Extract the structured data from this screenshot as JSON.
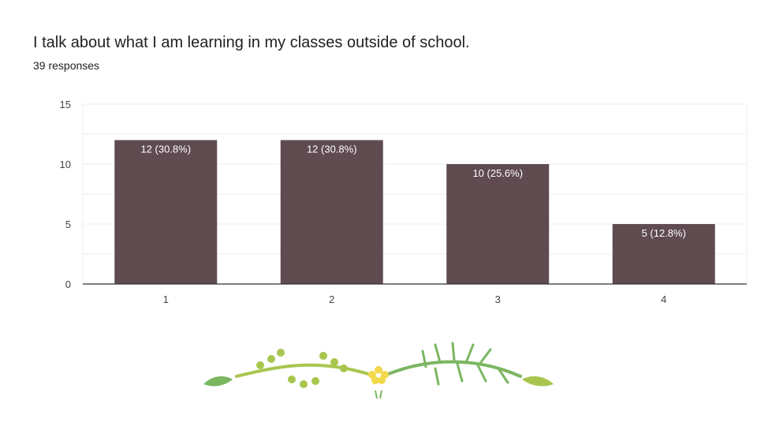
{
  "question": {
    "title": "I talk about what I am learning in my classes outside of school.",
    "responses": "39 responses"
  },
  "colors": {
    "bar": "#5f4b50",
    "grid": "#eeeeee",
    "axis": "#333333",
    "vine_green": "#a8c64e",
    "leaf_green": "#7bb661",
    "flower_yellow": "#f2d84b"
  },
  "chart_data": {
    "type": "bar",
    "categories": [
      "1",
      "2",
      "3",
      "4"
    ],
    "values": [
      12,
      12,
      10,
      5
    ],
    "data_labels": [
      "12 (30.8%)",
      "12 (30.8%)",
      "10 (25.6%)",
      "5 (12.8%)"
    ],
    "y_ticks": [
      "0",
      "5",
      "10",
      "15"
    ],
    "ylim": [
      0,
      15
    ],
    "grid": true,
    "title": "I talk about what I am learning in my classes outside of school.",
    "xlabel": "",
    "ylabel": ""
  }
}
